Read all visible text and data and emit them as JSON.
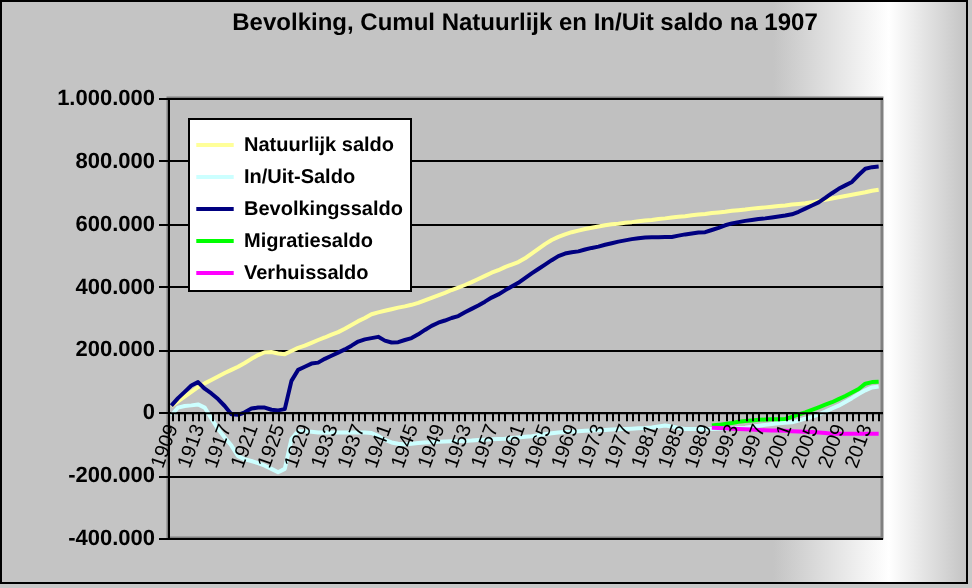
{
  "chart_data": {
    "type": "line",
    "title": "Bevolking, Cumul Natuurlijk en In/Uit saldo na 1907",
    "categories": [
      "1909",
      null,
      null,
      null,
      "1913",
      null,
      null,
      null,
      "1917",
      null,
      null,
      null,
      "1921",
      null,
      null,
      null,
      "1925",
      null,
      null,
      null,
      "1929",
      null,
      null,
      null,
      "1933",
      null,
      null,
      null,
      "1937",
      null,
      null,
      null,
      "1941",
      null,
      null,
      null,
      "1945",
      null,
      null,
      null,
      "1949",
      null,
      null,
      null,
      "1953",
      null,
      null,
      null,
      "1957",
      null,
      null,
      null,
      "1961",
      null,
      null,
      null,
      "1965",
      null,
      null,
      null,
      "1969",
      null,
      null,
      null,
      "1973",
      null,
      null,
      null,
      "1977",
      null,
      null,
      null,
      "1981",
      null,
      null,
      null,
      "1985",
      null,
      null,
      null,
      "1989",
      null,
      null,
      null,
      "1993",
      null,
      null,
      null,
      "1997",
      null,
      null,
      null,
      "2001",
      null,
      null,
      null,
      "2005",
      null,
      null,
      null,
      "2009",
      null,
      null,
      null,
      "2013",
      null,
      null
    ],
    "series": [
      {
        "name": "Natuurlijk saldo",
        "color": "#ffff99",
        "values": [
          20000,
          35000,
          50000,
          65000,
          80000,
          92000,
          103000,
          114000,
          125000,
          135000,
          145000,
          157000,
          170000,
          182000,
          191000,
          192000,
          187000,
          185000,
          195000,
          205000,
          212000,
          221000,
          230000,
          238000,
          247000,
          255000,
          266000,
          278000,
          290000,
          300000,
          312000,
          318000,
          323000,
          328000,
          333000,
          337000,
          342000,
          348000,
          356000,
          364000,
          372000,
          380000,
          389000,
          397000,
          405000,
          414000,
          424000,
          434000,
          444000,
          452000,
          462000,
          470000,
          478000,
          490000,
          505000,
          520000,
          535000,
          548000,
          558000,
          566000,
          573000,
          578000,
          583000,
          587000,
          591000,
          595000,
          598000,
          600000,
          603000,
          605000,
          608000,
          610000,
          612000,
          615000,
          617000,
          620000,
          622000,
          624000,
          627000,
          629000,
          631000,
          634000,
          636000,
          638000,
          641000,
          643000,
          645000,
          648000,
          650000,
          652000,
          654000,
          656000,
          658000,
          661000,
          663000,
          665000,
          668000,
          672000,
          676000,
          680000,
          684000,
          688000,
          692000,
          696000,
          700000,
          705000,
          708000
        ]
      },
      {
        "name": "In/Uit-Saldo",
        "color": "#ccffff",
        "values": [
          -10000,
          15000,
          20000,
          22000,
          25000,
          15000,
          -20000,
          -53000,
          -80000,
          -106000,
          -140000,
          -150000,
          -155000,
          -162000,
          -170000,
          -180000,
          -191000,
          -180000,
          -85000,
          -60000,
          -60000,
          -62000,
          -64000,
          -64000,
          -64000,
          -64000,
          -64000,
          -64000,
          -64000,
          -64000,
          -66000,
          -75000,
          -88000,
          -96000,
          -100000,
          -102000,
          -100000,
          -98000,
          -96000,
          -95000,
          -94000,
          -93000,
          -92000,
          -92000,
          -91000,
          -90000,
          -88000,
          -87000,
          -86000,
          -85000,
          -84000,
          -82000,
          -80000,
          -78000,
          -76000,
          -73000,
          -70000,
          -67000,
          -64000,
          -63000,
          -62000,
          -60000,
          -59000,
          -58000,
          -57000,
          -56000,
          -55000,
          -54000,
          -53000,
          -52000,
          -51000,
          -50000,
          -48000,
          -45000,
          -42000,
          -45000,
          -50000,
          -53000,
          -53000,
          -53000,
          -53000,
          -53000,
          -52000,
          -52000,
          -51000,
          -50000,
          -49000,
          -46000,
          -43000,
          -40000,
          -37000,
          -35000,
          -33000,
          -32000,
          -26000,
          -20000,
          -15000,
          -7000,
          2000,
          12000,
          21000,
          33000,
          45000,
          58000,
          70000,
          79000,
          82000
        ]
      },
      {
        "name": "Bevolkingssaldo",
        "color": "#000080",
        "values": [
          21000,
          45000,
          65000,
          85000,
          96000,
          75000,
          60000,
          42000,
          20000,
          -6000,
          -8000,
          0,
          12000,
          15000,
          15000,
          8000,
          6000,
          10000,
          100000,
          135000,
          145000,
          155000,
          158000,
          170000,
          180000,
          190000,
          200000,
          212000,
          225000,
          232000,
          236000,
          240000,
          228000,
          222000,
          223000,
          230000,
          236000,
          248000,
          262000,
          275000,
          285000,
          292000,
          300000,
          306000,
          318000,
          329000,
          340000,
          352000,
          365000,
          375000,
          388000,
          400000,
          412000,
          427000,
          442000,
          456000,
          470000,
          484000,
          497000,
          505000,
          509000,
          512000,
          518000,
          523000,
          527000,
          533000,
          538000,
          543000,
          547000,
          551000,
          554000,
          556000,
          557000,
          557000,
          558000,
          558000,
          562000,
          566000,
          569000,
          572000,
          573000,
          580000,
          587000,
          595000,
          601000,
          605000,
          609000,
          612000,
          615000,
          617000,
          620000,
          623000,
          626000,
          630000,
          638000,
          648000,
          658000,
          668000,
          682000,
          697000,
          711000,
          722000,
          733000,
          755000,
          775000,
          780000,
          782000
        ]
      },
      {
        "name": "Migratiesaldo",
        "color": "#00ff00",
        "values": [
          null,
          null,
          null,
          null,
          null,
          null,
          null,
          null,
          null,
          null,
          null,
          null,
          null,
          null,
          null,
          null,
          null,
          null,
          null,
          null,
          null,
          null,
          null,
          null,
          null,
          null,
          null,
          null,
          null,
          null,
          null,
          null,
          null,
          null,
          null,
          null,
          null,
          null,
          null,
          null,
          null,
          null,
          null,
          null,
          null,
          null,
          null,
          null,
          null,
          null,
          null,
          null,
          null,
          null,
          null,
          null,
          null,
          null,
          null,
          null,
          null,
          null,
          null,
          null,
          null,
          null,
          null,
          null,
          null,
          null,
          null,
          null,
          null,
          null,
          null,
          null,
          null,
          null,
          null,
          null,
          null,
          -42000,
          -40000,
          -37000,
          -34000,
          -30000,
          -28000,
          -26000,
          -24000,
          -23000,
          -22000,
          -22000,
          -21000,
          -15000,
          -7000,
          0,
          8000,
          16000,
          24000,
          32000,
          42000,
          52000,
          63000,
          74000,
          91000,
          96000,
          97000
        ]
      },
      {
        "name": "Verhuissaldo",
        "color": "#ff00ff",
        "values": [
          null,
          null,
          null,
          null,
          null,
          null,
          null,
          null,
          null,
          null,
          null,
          null,
          null,
          null,
          null,
          null,
          null,
          null,
          null,
          null,
          null,
          null,
          null,
          null,
          null,
          null,
          null,
          null,
          null,
          null,
          null,
          null,
          null,
          null,
          null,
          null,
          null,
          null,
          null,
          null,
          null,
          null,
          null,
          null,
          null,
          null,
          null,
          null,
          null,
          null,
          null,
          null,
          null,
          null,
          null,
          null,
          null,
          null,
          null,
          null,
          null,
          null,
          null,
          null,
          null,
          null,
          null,
          null,
          null,
          null,
          null,
          null,
          null,
          null,
          null,
          null,
          null,
          null,
          null,
          null,
          null,
          -49000,
          -50000,
          -51000,
          -52000,
          -53000,
          -54000,
          -55000,
          -56000,
          -57000,
          -58000,
          -58000,
          -59000,
          -60000,
          -61000,
          -62000,
          -63000,
          -64000,
          -66000,
          -68000,
          -68000,
          -68000,
          -68000,
          -68000,
          -68000,
          -68000,
          -68000
        ]
      }
    ],
    "ylim": [
      -400000,
      1000000
    ],
    "yticks": [
      {
        "value": -400000,
        "label": "-400.000"
      },
      {
        "value": -200000,
        "label": "-200.000"
      },
      0,
      {
        "value": 200000,
        "label": "200.000"
      },
      {
        "value": 400000,
        "label": "400.000"
      },
      {
        "value": 600000,
        "label": "600.000"
      },
      {
        "value": 800000,
        "label": "800.000"
      },
      {
        "value": 1000000,
        "label": "1.000.000"
      }
    ],
    "grid": "y",
    "legend": "top left"
  }
}
